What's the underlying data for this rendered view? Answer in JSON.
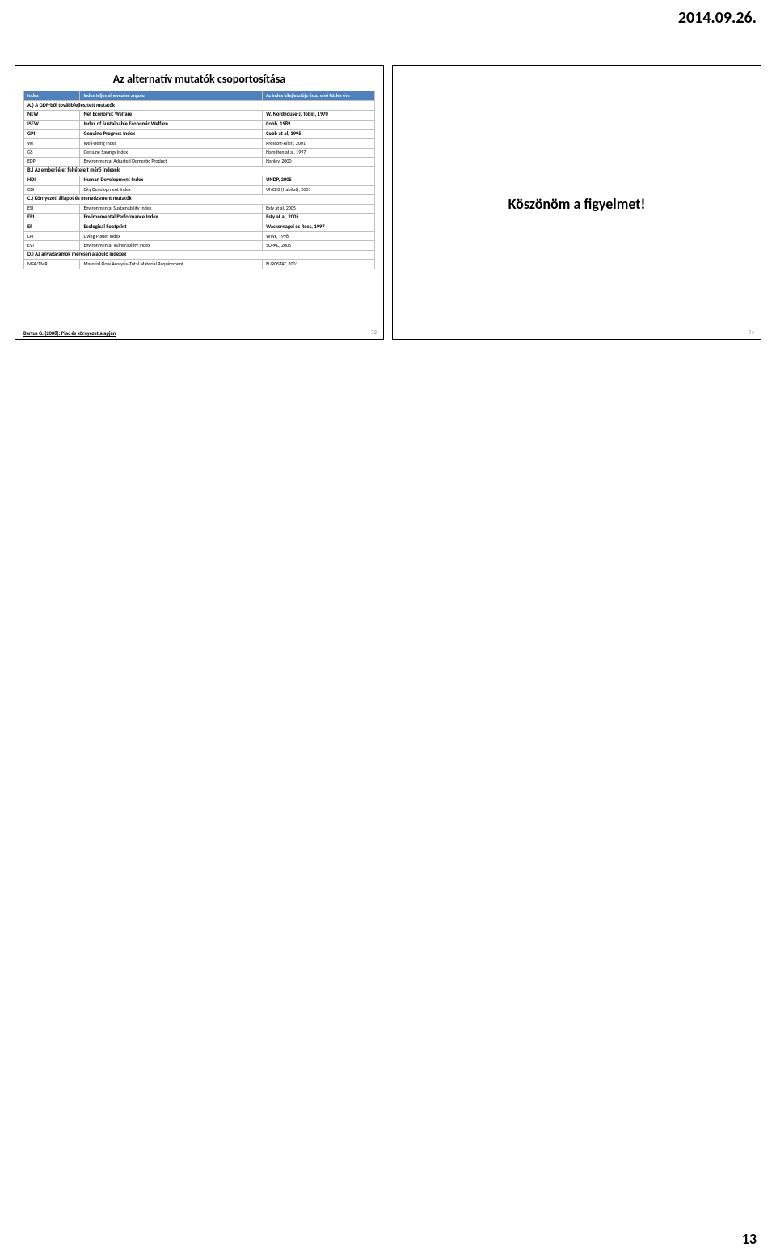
{
  "page_date": "2014.09.26.",
  "page_number": "13",
  "slide_left": {
    "title": "Az alternatív mutatók csoportosítása",
    "header": {
      "c0": "Index",
      "c1": "Index teljes elnevezése angolul",
      "c2": "Az index kifejlesztője és az első közlés éve"
    },
    "rows": [
      {
        "type": "section",
        "c0": "A.) A GDP-ből továbbfejlesztett mutatók",
        "c1": "",
        "c2": ""
      },
      {
        "type": "bold",
        "c0": "NEW",
        "c1": "Net Economic Welfare",
        "c2": "W. Nordhouse-J. Tobin, 1970"
      },
      {
        "type": "bold",
        "c0": "ISEW",
        "c1": "Index of Sustainable Economic Welfare",
        "c2": "Cobb, 1989"
      },
      {
        "type": "bold",
        "c0": "GPI",
        "c1": "Genuine Progress Index",
        "c2": "Cobb at al, 1995"
      },
      {
        "type": "plain",
        "c0": "WI",
        "c1": "Well-Being Index",
        "c2": "Prescott-Allen, 2001"
      },
      {
        "type": "plain",
        "c0": "GS",
        "c1": "Geniune Savings Index",
        "c2": "Hamilton at al, 1997"
      },
      {
        "type": "plain",
        "c0": "EDP",
        "c1": "Environmental Adjusted Domestic Product",
        "c2": "Hanley, 2000"
      },
      {
        "type": "section",
        "c0": "B.) Az emberi élet feltételeit mérő indexek",
        "c1": "",
        "c2": ""
      },
      {
        "type": "bold",
        "c0": "HDI",
        "c1": "Human Development Index",
        "c2": "UNDP, 2005"
      },
      {
        "type": "plain",
        "c0": "CDI",
        "c1": "City Development Index",
        "c2": "UNCHS (Habitat), 2001"
      },
      {
        "type": "section",
        "c0": "C.) Környezeti állapot és menedzsment mutatók",
        "c1": "",
        "c2": ""
      },
      {
        "type": "plain",
        "c0": "ESI",
        "c1": "Environmental Sustainability Index",
        "c2": "Esty at al, 2005"
      },
      {
        "type": "bold",
        "c0": "EPI",
        "c1": "Environmental Performance Index",
        "c2": "Esty at al, 2005"
      },
      {
        "type": "bold",
        "c0": "EF",
        "c1": "Ecological Footprint",
        "c2": "Wackernagel és Rees, 1997"
      },
      {
        "type": "plain",
        "c0": "LPI",
        "c1": "Living Planet Index",
        "c2": "WWF, 1998"
      },
      {
        "type": "plain",
        "c0": "EVI",
        "c1": "Environmental Vulnerability Index",
        "c2": "SOPAC, 2005"
      },
      {
        "type": "section",
        "c0": "D.) Az anyagáramok mérésén alapuló indexek",
        "c1": "",
        "c2": ""
      },
      {
        "type": "plain",
        "c0": "MFA/TMR",
        "c1": "Material Flow Analysis/Total Material Requirement",
        "c2": "EUROSTAT, 2001"
      }
    ],
    "footnote": "Bartus G. (2008): Piac és környezet alapján",
    "slide_num": "73"
  },
  "slide_right": {
    "thanks": "Köszönöm a figyelmet!",
    "slide_num": "74"
  },
  "colors": {
    "header_bg": "#4f81bd",
    "header_fg": "#ffffff",
    "border": "#bfbfbf",
    "slide_num": "#7f7f7f"
  }
}
